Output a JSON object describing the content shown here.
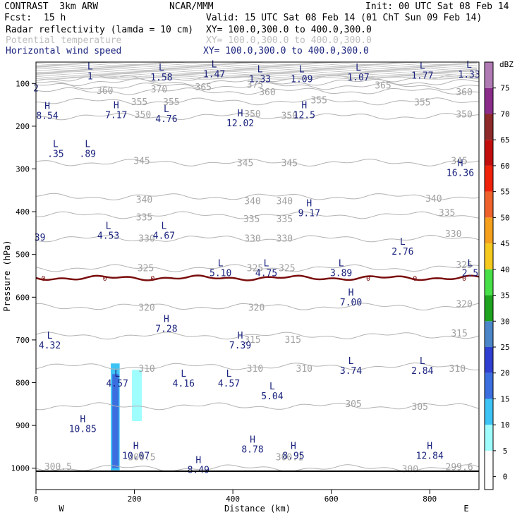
{
  "header": {
    "model": "CONTRAST  3km ARW",
    "center": "NCAR/MMM",
    "init": "Init: 00 UTC Sat 08 Feb 14",
    "fcst_label": "Fcst:",
    "fcst_value": "15 h",
    "valid": "Valid: 15 UTC Sat 08 Feb 14 (01 ChT Sun 09 Feb 14)",
    "fields": [
      {
        "name": "Radar reflectivity (lamda = 10 cm)",
        "xy": "XY= 100.0,300.0 to 400.0,300.0",
        "color": "#000000"
      },
      {
        "name": "Potential temperature",
        "xy": "XY= 100.0,300.0 to 400.0,300.0",
        "color": "#bdbdbd"
      },
      {
        "name": "Horizontal wind speed",
        "xy": "XY= 100.0,300.0 to 400.0,300.0",
        "color": "#1a237e"
      }
    ]
  },
  "chart_data": {
    "type": "cross-section",
    "xlabel": "Distance (km)",
    "ylabel": "Pressure (hPa)",
    "xlim": [
      0,
      900
    ],
    "ylim": [
      1050,
      50
    ],
    "x_ticks": [
      0,
      200,
      400,
      600,
      800
    ],
    "y_ticks": [
      100,
      200,
      300,
      400,
      500,
      600,
      700,
      800,
      900,
      1000
    ],
    "x_end_labels": {
      "left": "W",
      "right": "E"
    },
    "colorbar": {
      "unit": "dBZ",
      "levels": [
        0,
        5,
        10,
        15,
        20,
        25,
        30,
        35,
        40,
        45,
        50,
        55,
        60,
        65,
        70,
        75
      ],
      "colors": [
        "#ffffff",
        "#9ffdfd",
        "#3ec3f5",
        "#3b6fe0",
        "#2f3fd1",
        "#4a86c8",
        "#1ea31e",
        "#48e048",
        "#f5c91e",
        "#f5a11e",
        "#f0622b",
        "#f0220a",
        "#c30e0e",
        "#8e2a2a",
        "#8b2c8b",
        "#b07ab5"
      ]
    },
    "theta_contours": [
      {
        "value": 300,
        "pressure": 1000
      },
      {
        "value": 305,
        "pressure": 855
      },
      {
        "value": 310,
        "pressure": 762
      },
      {
        "value": 315,
        "pressure": 690
      },
      {
        "value": 320,
        "pressure": 622
      },
      {
        "value": 325,
        "pressure": 532
      },
      {
        "value": 330,
        "pressure": 463
      },
      {
        "value": 335,
        "pressure": 408
      },
      {
        "value": 340,
        "pressure": 365
      },
      {
        "value": 345,
        "pressure": 285
      },
      {
        "value": 350,
        "pressure": 177
      },
      {
        "value": 355,
        "pressure": 142
      },
      {
        "value": 360,
        "pressure": 118
      },
      {
        "value": 365,
        "pressure": 106
      },
      {
        "value": 370,
        "pressure": 97
      },
      {
        "value": 375,
        "pressure": 88
      }
    ],
    "theta_labels": [
      {
        "x": 140,
        "p": 118,
        "text": "360"
      },
      {
        "x": 250,
        "p": 114,
        "text": "370"
      },
      {
        "x": 340,
        "p": 109,
        "text": "365"
      },
      {
        "x": 445,
        "p": 104,
        "text": "375"
      },
      {
        "x": 470,
        "p": 121,
        "text": "360"
      },
      {
        "x": 705,
        "p": 105,
        "text": "365"
      },
      {
        "x": 870,
        "p": 121,
        "text": "360"
      },
      {
        "x": 210,
        "p": 144,
        "text": "355"
      },
      {
        "x": 275,
        "p": 144,
        "text": "355"
      },
      {
        "x": 575,
        "p": 140,
        "text": "355"
      },
      {
        "x": 785,
        "p": 145,
        "text": "355"
      },
      {
        "x": 217,
        "p": 174,
        "text": "350"
      },
      {
        "x": 440,
        "p": 172,
        "text": "350"
      },
      {
        "x": 515,
        "p": 176,
        "text": "350"
      },
      {
        "x": 870,
        "p": 173,
        "text": "350"
      },
      {
        "x": 215,
        "p": 282,
        "text": "345"
      },
      {
        "x": 425,
        "p": 287,
        "text": "345"
      },
      {
        "x": 515,
        "p": 287,
        "text": "345"
      },
      {
        "x": 860,
        "p": 282,
        "text": "345"
      },
      {
        "x": 220,
        "p": 373,
        "text": "340"
      },
      {
        "x": 440,
        "p": 376,
        "text": "340"
      },
      {
        "x": 505,
        "p": 376,
        "text": "340"
      },
      {
        "x": 808,
        "p": 370,
        "text": "340"
      },
      {
        "x": 220,
        "p": 414,
        "text": "335"
      },
      {
        "x": 438,
        "p": 418,
        "text": "335"
      },
      {
        "x": 505,
        "p": 418,
        "text": "335"
      },
      {
        "x": 835,
        "p": 403,
        "text": "335"
      },
      {
        "x": 225,
        "p": 463,
        "text": "330"
      },
      {
        "x": 440,
        "p": 463,
        "text": "330"
      },
      {
        "x": 505,
        "p": 463,
        "text": "330"
      },
      {
        "x": 848,
        "p": 453,
        "text": "330"
      },
      {
        "x": 223,
        "p": 533,
        "text": "325"
      },
      {
        "x": 445,
        "p": 533,
        "text": "325"
      },
      {
        "x": 510,
        "p": 533,
        "text": "325"
      },
      {
        "x": 870,
        "p": 525,
        "text": "325"
      },
      {
        "x": 225,
        "p": 625,
        "text": "320"
      },
      {
        "x": 448,
        "p": 625,
        "text": "320"
      },
      {
        "x": 870,
        "p": 617,
        "text": "320"
      },
      {
        "x": 440,
        "p": 700,
        "text": "315"
      },
      {
        "x": 522,
        "p": 700,
        "text": "315"
      },
      {
        "x": 860,
        "p": 685,
        "text": "315"
      },
      {
        "x": 225,
        "p": 768,
        "text": "310"
      },
      {
        "x": 445,
        "p": 768,
        "text": "310"
      },
      {
        "x": 545,
        "p": 768,
        "text": "310"
      },
      {
        "x": 856,
        "p": 768,
        "text": "310"
      },
      {
        "x": 645,
        "p": 850,
        "text": "305"
      },
      {
        "x": 780,
        "p": 857,
        "text": "305"
      },
      {
        "x": 45,
        "p": 997,
        "text": "300.5"
      },
      {
        "x": 215,
        "p": 975,
        "text": "300.5"
      },
      {
        "x": 515,
        "p": 975,
        "text": "300.1"
      },
      {
        "x": 760,
        "p": 1003,
        "text": "300"
      },
      {
        "x": 860,
        "p": 998,
        "text": "299.6"
      }
    ],
    "wind_extrema": [
      {
        "x": 0,
        "p": 100,
        "type": "",
        "value": "2"
      },
      {
        "x": 110,
        "p": 72,
        "type": "L",
        "value": "1"
      },
      {
        "x": 255,
        "p": 75,
        "type": "L",
        "value": "1.58"
      },
      {
        "x": 362,
        "p": 67,
        "type": "L",
        "value": "1.47"
      },
      {
        "x": 455,
        "p": 79,
        "type": "L",
        "value": "1.33"
      },
      {
        "x": 540,
        "p": 79,
        "type": "L",
        "value": "1.09"
      },
      {
        "x": 655,
        "p": 75,
        "type": "L",
        "value": "1.07"
      },
      {
        "x": 785,
        "p": 71,
        "type": "L",
        "value": "1.77"
      },
      {
        "x": 880,
        "p": 68,
        "type": "L",
        "value": "1.33"
      },
      {
        "x": 23,
        "p": 165,
        "type": "H",
        "value": "8.54"
      },
      {
        "x": 163,
        "p": 163,
        "type": "H",
        "value": "7.17"
      },
      {
        "x": 265,
        "p": 172,
        "type": "L",
        "value": "4.76"
      },
      {
        "x": 415,
        "p": 182,
        "type": "H",
        "value": "12.02"
      },
      {
        "x": 545,
        "p": 163,
        "type": "H",
        "value": "12.5"
      },
      {
        "x": 40,
        "p": 254,
        "type": "L",
        "value": ".35"
      },
      {
        "x": 105,
        "p": 254,
        "type": "L",
        "value": ".89"
      },
      {
        "x": 862,
        "p": 298,
        "type": "H",
        "value": "16.36"
      },
      {
        "x": 555,
        "p": 392,
        "type": "H",
        "value": "9.17"
      },
      {
        "x": 8,
        "p": 449,
        "type": "",
        "value": "39"
      },
      {
        "x": 147,
        "p": 445,
        "type": "L",
        "value": "4.53"
      },
      {
        "x": 260,
        "p": 445,
        "type": "L",
        "value": "4.67"
      },
      {
        "x": 745,
        "p": 482,
        "type": "L",
        "value": "2.76"
      },
      {
        "x": 375,
        "p": 533,
        "type": "L",
        "value": "5.10"
      },
      {
        "x": 468,
        "p": 533,
        "type": "L",
        "value": "4.75"
      },
      {
        "x": 620,
        "p": 533,
        "type": "L",
        "value": "3.89"
      },
      {
        "x": 882,
        "p": 533,
        "type": "L",
        "value": "2.5"
      },
      {
        "x": 640,
        "p": 601,
        "type": "H",
        "value": "7.00"
      },
      {
        "x": 265,
        "p": 663,
        "type": "H",
        "value": "7.28"
      },
      {
        "x": 28,
        "p": 702,
        "type": "L",
        "value": "4.32"
      },
      {
        "x": 415,
        "p": 702,
        "type": "H",
        "value": "7.39"
      },
      {
        "x": 640,
        "p": 761,
        "type": "L",
        "value": "3.74"
      },
      {
        "x": 785,
        "p": 761,
        "type": "L",
        "value": "2.84"
      },
      {
        "x": 165,
        "p": 791,
        "type": "L",
        "value": "4.57"
      },
      {
        "x": 300,
        "p": 791,
        "type": "L",
        "value": "4.16"
      },
      {
        "x": 392,
        "p": 791,
        "type": "L",
        "value": "4.57"
      },
      {
        "x": 480,
        "p": 821,
        "type": "L",
        "value": "5.04"
      },
      {
        "x": 95,
        "p": 897,
        "type": "H",
        "value": "10.85"
      },
      {
        "x": 203,
        "p": 960,
        "type": "H",
        "value": "10.07"
      },
      {
        "x": 440,
        "p": 945,
        "type": "H",
        "value": "8.78"
      },
      {
        "x": 523,
        "p": 960,
        "type": "H",
        "value": "8.95"
      },
      {
        "x": 800,
        "p": 960,
        "type": "H",
        "value": "12.84"
      },
      {
        "x": 330,
        "p": 993,
        "type": "H",
        "value": "8.49"
      }
    ],
    "zero_line_labels": [
      "0",
      "0",
      "0",
      "0",
      "0",
      "0"
    ],
    "zero_line_label_x": [
      15,
      140,
      237,
      675,
      770,
      870
    ],
    "zero_line_pressure": 555,
    "reflectivity_cells": [
      {
        "x_min": 152,
        "x_max": 170,
        "p_top": 755,
        "p_bottom": 1005,
        "dbz": 10
      },
      {
        "x_min": 155,
        "x_max": 168,
        "p_top": 780,
        "p_bottom": 1000,
        "dbz": 15
      },
      {
        "x_min": 195,
        "x_max": 215,
        "p_top": 770,
        "p_bottom": 890,
        "dbz": 5
      }
    ]
  }
}
